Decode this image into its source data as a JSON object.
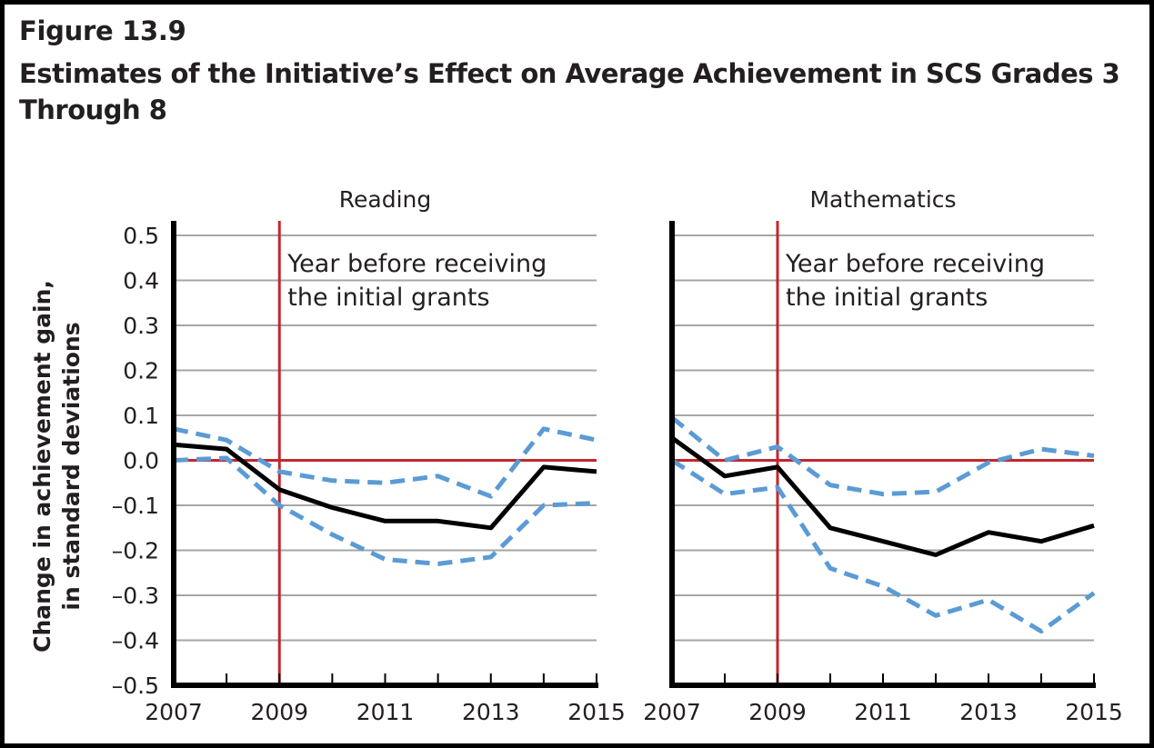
{
  "figure": {
    "number": "Figure 13.9",
    "title": "Estimates of the Initiative’s Effect on Average Achievement in SCS Grades 3 Through 8"
  },
  "colors": {
    "estimate": "#000000",
    "ci": "#5b9bd5",
    "reference": "#c1272d",
    "grid": "#a6a6a6"
  },
  "chart_data": [
    {
      "type": "line",
      "title": "Reading",
      "xlabel": "",
      "ylabel": "Change in achievement gain, in standard deviations",
      "x": [
        2007,
        2008,
        2009,
        2010,
        2011,
        2012,
        2013,
        2014,
        2015
      ],
      "xticks": [
        "2007",
        "2009",
        "2011",
        "2013",
        "2015"
      ],
      "yticks": [
        "0.5",
        "0.4",
        "0.3",
        "0.2",
        "0.1",
        "0.0",
        "–0.1",
        "–0.2",
        "–0.3",
        "–0.4",
        "–0.5"
      ],
      "ylim": [
        -0.5,
        0.5
      ],
      "xlim": [
        2007,
        2015
      ],
      "grid": true,
      "annotation": {
        "x": 2009,
        "text_line1": "Year before receiving",
        "text_line2": "the initial grants"
      },
      "series": [
        {
          "name": "Estimate",
          "style": "solid",
          "values": [
            0.035,
            0.025,
            -0.065,
            -0.105,
            -0.135,
            -0.135,
            -0.15,
            -0.015,
            -0.025
          ]
        },
        {
          "name": "Upper bound",
          "style": "dashed",
          "values": [
            0.07,
            0.045,
            -0.025,
            -0.045,
            -0.05,
            -0.035,
            -0.08,
            0.07,
            0.045
          ]
        },
        {
          "name": "Lower bound",
          "style": "dashed",
          "values": [
            0.0,
            0.005,
            -0.1,
            -0.165,
            -0.22,
            -0.23,
            -0.215,
            -0.1,
            -0.095
          ]
        }
      ]
    },
    {
      "type": "line",
      "title": "Mathematics",
      "xlabel": "",
      "ylabel": "",
      "x": [
        2007,
        2008,
        2009,
        2010,
        2011,
        2012,
        2013,
        2014,
        2015
      ],
      "xticks": [
        "2007",
        "2009",
        "2011",
        "2013",
        "2015"
      ],
      "yticks": [],
      "ylim": [
        -0.5,
        0.5
      ],
      "xlim": [
        2007,
        2015
      ],
      "grid": true,
      "annotation": {
        "x": 2009,
        "text_line1": "Year before receiving",
        "text_line2": "the initial grants"
      },
      "series": [
        {
          "name": "Estimate",
          "style": "solid",
          "values": [
            0.05,
            -0.035,
            -0.015,
            -0.15,
            -0.18,
            -0.21,
            -0.16,
            -0.18,
            -0.145
          ]
        },
        {
          "name": "Upper bound",
          "style": "dashed",
          "values": [
            0.095,
            0.0,
            0.03,
            -0.055,
            -0.075,
            -0.07,
            -0.005,
            0.025,
            0.01
          ]
        },
        {
          "name": "Lower bound",
          "style": "dashed",
          "values": [
            0.0,
            -0.075,
            -0.06,
            -0.24,
            -0.28,
            -0.345,
            -0.31,
            -0.38,
            -0.295
          ]
        }
      ]
    }
  ]
}
